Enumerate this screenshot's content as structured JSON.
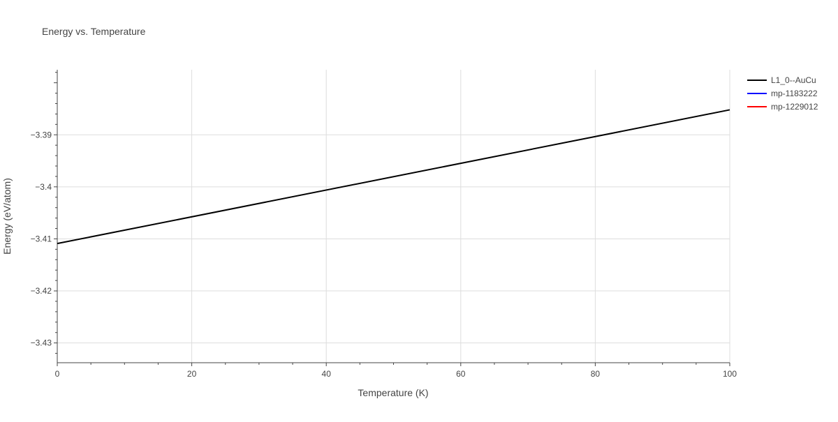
{
  "chart_data": {
    "type": "line",
    "title": "Energy vs. Temperature",
    "xlabel": "Temperature (K)",
    "ylabel": "Energy (eV/atom)",
    "xlim": [
      0,
      100
    ],
    "ylim": [
      -3.4338,
      -3.3775
    ],
    "x_ticks": [
      0,
      20,
      40,
      60,
      80,
      100
    ],
    "x_tick_labels": [
      "0",
      "20",
      "40",
      "60",
      "80",
      "100"
    ],
    "y_ticks": [
      -3.39,
      -3.4,
      -3.41,
      -3.42,
      -3.43
    ],
    "y_tick_labels": [
      "−3.39",
      "−3.4",
      "−3.41",
      "−3.42",
      "−3.43"
    ],
    "grid": true,
    "legend_position": "top-right",
    "series": [
      {
        "name": "L1_0--AuCu",
        "color": "#000000",
        "x": [
          0,
          100
        ],
        "y": [
          -3.4109,
          -3.3852
        ]
      },
      {
        "name": "mp-1183222",
        "color": "#0000ff",
        "x": [],
        "y": []
      },
      {
        "name": "mp-1229012",
        "color": "#ff0000",
        "x": [],
        "y": []
      }
    ]
  }
}
